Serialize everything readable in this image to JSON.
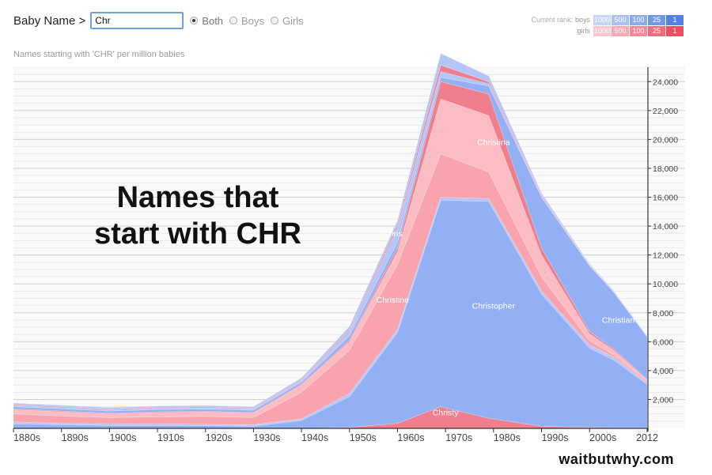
{
  "header": {
    "app_title": "Baby Name >",
    "search_value": "Chr",
    "options": [
      {
        "label": "Both",
        "selected": true
      },
      {
        "label": "Boys",
        "selected": false
      },
      {
        "label": "Girls",
        "selected": false
      }
    ]
  },
  "rank_legend": {
    "label": "Current rank:",
    "rows": [
      {
        "gender": "boys",
        "cells": [
          "1000",
          "500",
          "100",
          "25",
          "1"
        ],
        "colors": [
          "#c5d4f7",
          "#aac0f3",
          "#8eabee",
          "#7197e9",
          "#5580e3"
        ]
      },
      {
        "gender": "girls",
        "cells": [
          "1000",
          "500",
          "100",
          "25",
          "1"
        ],
        "colors": [
          "#f9c7cd",
          "#f6a9b2",
          "#f28b97",
          "#ee6d7c",
          "#ea5062"
        ]
      }
    ]
  },
  "subtitle": "Names starting with 'CHR' per million babies",
  "overlay_title_lines": [
    "Names that",
    "start with CHR"
  ],
  "watermark": "waitbutwhy.com",
  "colors": {
    "boys_main": "#93b0f5",
    "boys_light": "#b3c6f7",
    "girls_main": "#f8a3ad",
    "girls_dark": "#f07e8c",
    "girls_light": "#fbbcc4",
    "grid": "#e0e0e0",
    "axis": "#333333"
  },
  "chart_data": {
    "type": "area",
    "stacked": true,
    "ylabel": "",
    "ylim": [
      0,
      25000
    ],
    "ytick_labels": [
      "2,000",
      "4,000",
      "6,000",
      "8,000",
      "10,000",
      "12,000",
      "14,000",
      "16,000",
      "18,000",
      "20,000",
      "22,000",
      "24,000"
    ],
    "ytick_values": [
      2000,
      4000,
      6000,
      8000,
      10000,
      12000,
      14000,
      16000,
      18000,
      20000,
      22000,
      24000
    ],
    "xtick_labels": [
      "1880s",
      "1890s",
      "1900s",
      "1910s",
      "1920s",
      "1930s",
      "1940s",
      "1950s",
      "1960s",
      "1970s",
      "1980s",
      "1990s",
      "2000s",
      "2012"
    ],
    "xtick_values": [
      1880,
      1890,
      1900,
      1910,
      1920,
      1930,
      1940,
      1950,
      1960,
      1970,
      1980,
      1990,
      2000,
      2012
    ],
    "xlim": [
      1880,
      2012
    ],
    "grid": true,
    "x": [
      1880,
      1890,
      1900,
      1910,
      1920,
      1930,
      1940,
      1950,
      1960,
      1969,
      1979,
      1990,
      2000,
      2005,
      2012
    ],
    "series": [
      {
        "name": "Christy",
        "group": "girls",
        "values": [
          0,
          0,
          0,
          0,
          0,
          0,
          0,
          60,
          350,
          1500,
          700,
          150,
          60,
          50,
          40
        ]
      },
      {
        "name": "Christopher",
        "group": "boys",
        "values": [
          300,
          250,
          200,
          200,
          180,
          150,
          550,
          2150,
          6300,
          14300,
          15000,
          9150,
          5500,
          4700,
          3000
        ]
      },
      {
        "name": "",
        "group": "boys",
        "values": [
          150,
          100,
          100,
          100,
          100,
          100,
          100,
          200,
          200,
          200,
          200,
          200,
          200,
          200,
          100
        ]
      },
      {
        "name": "Christine",
        "group": "girls",
        "values": [
          550,
          500,
          450,
          500,
          550,
          500,
          1850,
          3000,
          4500,
          3000,
          1850,
          1000,
          300,
          150,
          100
        ]
      },
      {
        "name": "",
        "group": "girls",
        "values": [
          300,
          300,
          250,
          300,
          300,
          300,
          500,
          600,
          900,
          3800,
          3900,
          1500,
          500,
          300,
          100
        ]
      },
      {
        "name": "",
        "group": "girls",
        "values": [
          50,
          50,
          50,
          50,
          50,
          50,
          50,
          100,
          250,
          1200,
          1500,
          500,
          150,
          100,
          50
        ]
      },
      {
        "name": "Christian",
        "group": "boys",
        "values": [
          150,
          150,
          150,
          150,
          150,
          150,
          150,
          300,
          400,
          300,
          550,
          3500,
          4550,
          3950,
          2950
        ]
      },
      {
        "name": "Chris",
        "group": "boys",
        "values": [
          100,
          100,
          100,
          100,
          100,
          100,
          100,
          250,
          1000,
          400,
          150,
          50,
          30,
          20,
          10
        ]
      },
      {
        "name": "",
        "group": "girls",
        "values": [
          50,
          50,
          50,
          50,
          50,
          50,
          50,
          100,
          200,
          450,
          150,
          80,
          30,
          20,
          10
        ]
      },
      {
        "name": "Christina",
        "group": "boys",
        "values": [
          100,
          100,
          100,
          100,
          100,
          100,
          150,
          300,
          300,
          800,
          400,
          150,
          80,
          60,
          40
        ]
      }
    ],
    "labels": [
      {
        "text": "Christina",
        "x": 1980,
        "y": 19600
      },
      {
        "text": "Chris",
        "x": 1959,
        "y": 13300
      },
      {
        "text": "Christine",
        "x": 1959,
        "y": 8700
      },
      {
        "text": "Christopher",
        "x": 1980,
        "y": 8300
      },
      {
        "text": "Christian",
        "x": 2006,
        "y": 7300
      },
      {
        "text": "Christy",
        "x": 1970,
        "y": 900
      }
    ]
  }
}
